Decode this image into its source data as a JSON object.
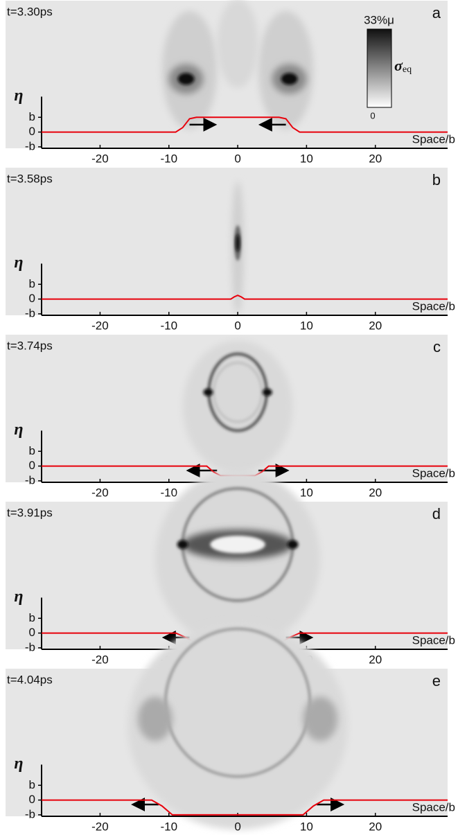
{
  "chart_data": [
    {
      "type": "line",
      "title": "t=3.30ps",
      "panel": "a",
      "xlabel": "Space/b",
      "ylabel": "η",
      "xlim": [
        -28.5,
        30.5
      ],
      "ylim": [
        -1.1,
        8.9
      ],
      "xticks": [
        -20,
        -10,
        0,
        10,
        20
      ],
      "yticks": [
        {
          "value": -1,
          "label": "-b"
        },
        0,
        {
          "value": 1,
          "label": "b"
        }
      ],
      "colorbar": {
        "max_label": "33%μ",
        "label": "σ",
        "label_sub": "eq",
        "min_label": "0"
      },
      "series": [
        {
          "color": "#e8000b",
          "x": [
            -28.5,
            -9,
            -8,
            -7,
            -6,
            6,
            7,
            8,
            9,
            30.5
          ],
          "values": [
            0,
            0,
            0.3,
            0.9,
            1,
            1,
            0.9,
            0.3,
            0,
            0
          ]
        }
      ]
    },
    {
      "type": "line",
      "title": "t=3.58ps",
      "panel": "b",
      "xlabel": "Space/b",
      "ylabel": "η",
      "xlim": [
        -28.5,
        30.5
      ],
      "ylim": [
        -1.1,
        8.9
      ],
      "xticks": [
        -20,
        -10,
        0,
        10,
        20
      ],
      "yticks": [
        {
          "value": -1,
          "label": "-b"
        },
        0,
        {
          "value": 1,
          "label": "b"
        }
      ],
      "series": [
        {
          "color": "#e8000b",
          "x": [
            -28.5,
            -1,
            -0.5,
            0,
            0.5,
            1,
            30.5
          ],
          "values": [
            0,
            0,
            0.15,
            0.25,
            0.15,
            0,
            0
          ]
        }
      ]
    },
    {
      "type": "line",
      "title": "t=3.74ps",
      "panel": "c",
      "xlabel": "Space/b",
      "ylabel": "η",
      "xlim": [
        -28.5,
        30.5
      ],
      "ylim": [
        -1.1,
        8.9
      ],
      "xticks": [
        -20,
        -10,
        0,
        10,
        20
      ],
      "yticks": [
        {
          "value": -1,
          "label": "-b"
        },
        0,
        {
          "value": 1,
          "label": "b"
        }
      ],
      "series": [
        {
          "color": "#e8000b",
          "x": [
            -28.5,
            -4.5,
            -3.5,
            -2.5,
            2.5,
            3.5,
            4.5,
            30.5
          ],
          "values": [
            0,
            0,
            -0.4,
            -0.65,
            -0.65,
            -0.4,
            0,
            0
          ]
        }
      ]
    },
    {
      "type": "line",
      "title": "t=3.91ps",
      "panel": "d",
      "xlabel": "Space/b",
      "ylabel": "η",
      "xlim": [
        -28.5,
        30.5
      ],
      "ylim": [
        -1.1,
        8.9
      ],
      "xticks": [
        -20,
        -10,
        0,
        10,
        20
      ],
      "yticks": [
        {
          "value": -1,
          "label": "-b"
        },
        0,
        {
          "value": 1,
          "label": "b"
        }
      ],
      "series": [
        {
          "color": "#e8000b",
          "x": [
            -28.5,
            -9,
            -7.5,
            -6,
            -4,
            4,
            6,
            7.5,
            9,
            30.5
          ],
          "values": [
            0,
            0,
            -0.3,
            -0.7,
            -1,
            -1,
            -0.7,
            -0.3,
            0,
            0
          ]
        }
      ]
    },
    {
      "type": "line",
      "title": "t=4.04ps",
      "panel": "e",
      "xlabel": "Space/b",
      "ylabel": "η",
      "xlim": [
        -28.5,
        30.5
      ],
      "ylim": [
        -1.1,
        8.9
      ],
      "xticks": [
        -20,
        -10,
        0,
        10,
        20
      ],
      "yticks": [
        {
          "value": -1,
          "label": "-b"
        },
        0,
        {
          "value": 1,
          "label": "b"
        }
      ],
      "series": [
        {
          "color": "#e8000b",
          "x": [
            -28.5,
            -12.5,
            -11,
            -9.5,
            9.5,
            11,
            12.5,
            30.5
          ],
          "values": [
            0,
            0,
            -0.4,
            -1,
            -1,
            -0.4,
            0,
            0
          ]
        }
      ]
    }
  ]
}
